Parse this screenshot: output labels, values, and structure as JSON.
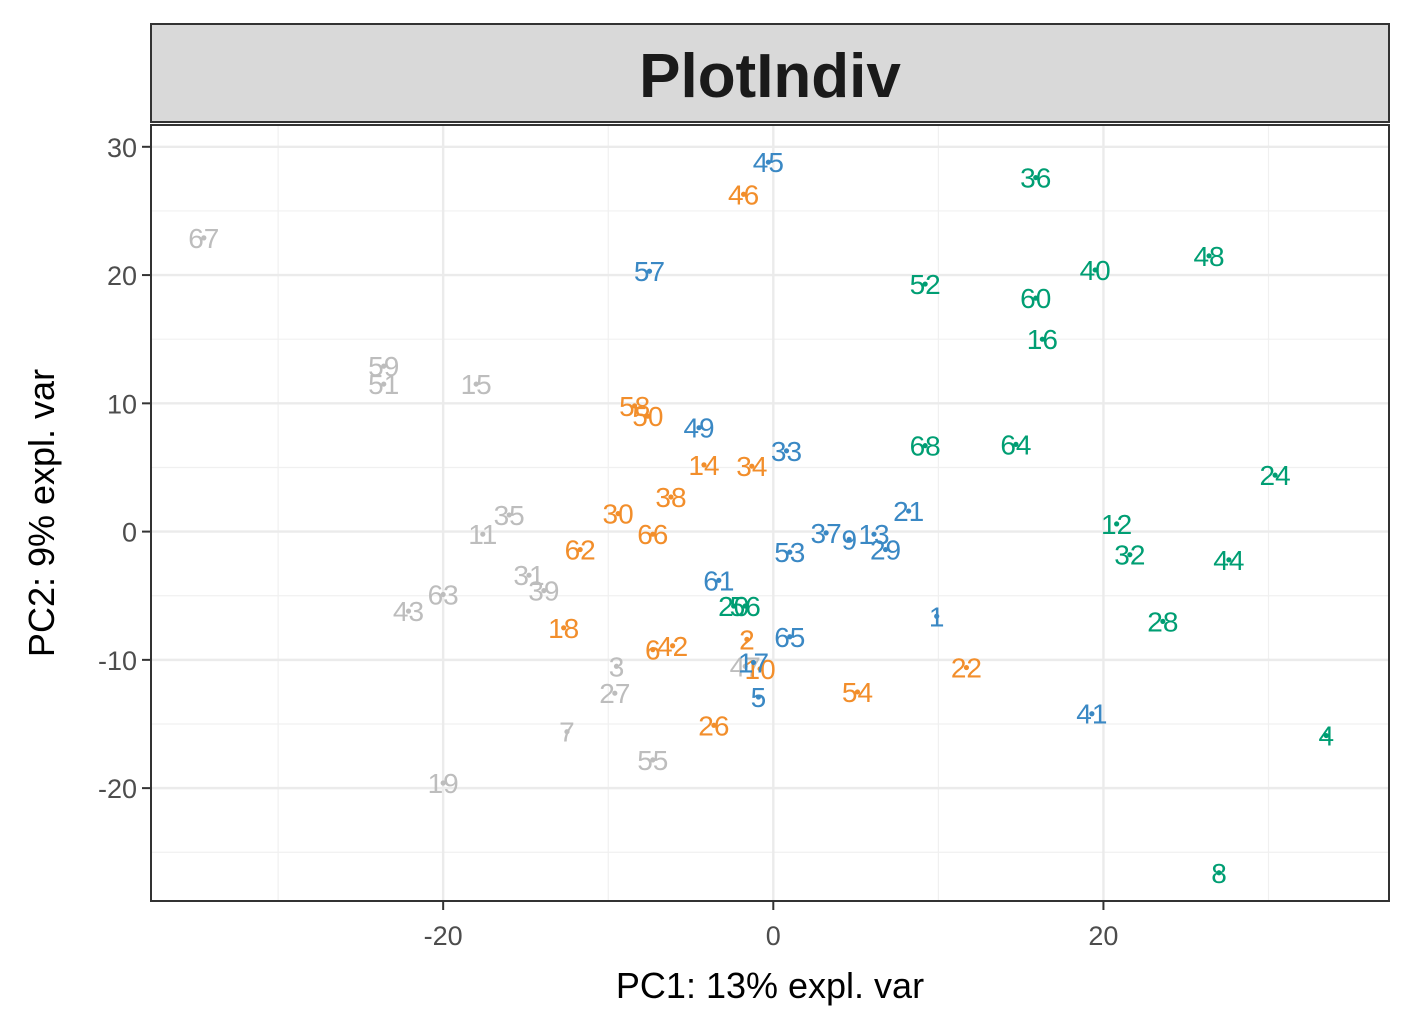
{
  "chart_data": {
    "type": "scatter",
    "title": "PlotIndiv",
    "xlabel": "PC1: 13% expl. var",
    "ylabel": "PC2: 9% expl. var",
    "xlim": [
      -37.7,
      37.3
    ],
    "ylim": [
      -28.8,
      31.7
    ],
    "x_ticks": [
      -20,
      0,
      20
    ],
    "x_tick_labels": [
      "-20",
      "0",
      "20"
    ],
    "y_ticks": [
      -20,
      -10,
      0,
      10,
      20,
      30
    ],
    "y_tick_labels": [
      "-20",
      "-10",
      "0",
      "10",
      "20",
      "30"
    ],
    "grid": true,
    "legend": "none",
    "colors": {
      "gray": "#bdbdbd",
      "orange": "#f28e2b",
      "blue": "#3a88c4",
      "green": "#009e73"
    },
    "points": [
      {
        "label": "67",
        "x": -34.5,
        "y": 22.9,
        "group": "gray"
      },
      {
        "label": "59",
        "x": -23.6,
        "y": 12.9,
        "group": "gray"
      },
      {
        "label": "51",
        "x": -23.6,
        "y": 11.5,
        "group": "gray"
      },
      {
        "label": "15",
        "x": -18.0,
        "y": 11.5,
        "group": "gray"
      },
      {
        "label": "35",
        "x": -16.0,
        "y": 1.3,
        "group": "gray"
      },
      {
        "label": "11",
        "x": -17.6,
        "y": -0.2,
        "group": "gray"
      },
      {
        "label": "31",
        "x": -14.8,
        "y": -3.4,
        "group": "gray"
      },
      {
        "label": "39",
        "x": -13.9,
        "y": -4.6,
        "group": "gray"
      },
      {
        "label": "63",
        "x": -20.0,
        "y": -4.9,
        "group": "gray"
      },
      {
        "label": "43",
        "x": -22.1,
        "y": -6.2,
        "group": "gray"
      },
      {
        "label": "3",
        "x": -9.5,
        "y": -10.5,
        "group": "gray"
      },
      {
        "label": "27",
        "x": -9.6,
        "y": -12.6,
        "group": "gray"
      },
      {
        "label": "7",
        "x": -12.5,
        "y": -15.6,
        "group": "gray"
      },
      {
        "label": "55",
        "x": -7.3,
        "y": -17.8,
        "group": "gray"
      },
      {
        "label": "19",
        "x": -20.0,
        "y": -19.6,
        "group": "gray"
      },
      {
        "label": "47",
        "x": -1.7,
        "y": -10.5,
        "group": "gray"
      },
      {
        "label": "46",
        "x": -1.8,
        "y": 26.3,
        "group": "orange"
      },
      {
        "label": "58",
        "x": -8.4,
        "y": 9.8,
        "group": "orange"
      },
      {
        "label": "50",
        "x": -7.6,
        "y": 9.0,
        "group": "orange"
      },
      {
        "label": "14",
        "x": -4.2,
        "y": 5.2,
        "group": "orange"
      },
      {
        "label": "34",
        "x": -1.3,
        "y": 5.1,
        "group": "orange"
      },
      {
        "label": "38",
        "x": -6.2,
        "y": 2.7,
        "group": "orange"
      },
      {
        "label": "30",
        "x": -9.4,
        "y": 1.4,
        "group": "orange"
      },
      {
        "label": "66",
        "x": -7.3,
        "y": -0.2,
        "group": "orange"
      },
      {
        "label": "62",
        "x": -11.7,
        "y": -1.4,
        "group": "orange"
      },
      {
        "label": "18",
        "x": -12.7,
        "y": -7.5,
        "group": "orange"
      },
      {
        "label": "6",
        "x": -7.3,
        "y": -9.2,
        "group": "orange"
      },
      {
        "label": "42",
        "x": -6.1,
        "y": -8.9,
        "group": "orange"
      },
      {
        "label": "2",
        "x": -1.6,
        "y": -8.4,
        "group": "orange"
      },
      {
        "label": "10",
        "x": -0.8,
        "y": -10.7,
        "group": "orange"
      },
      {
        "label": "26",
        "x": -3.6,
        "y": -15.1,
        "group": "orange"
      },
      {
        "label": "54",
        "x": 5.1,
        "y": -12.5,
        "group": "orange"
      },
      {
        "label": "22",
        "x": 11.7,
        "y": -10.6,
        "group": "orange"
      },
      {
        "label": "45",
        "x": -0.3,
        "y": 28.8,
        "group": "blue"
      },
      {
        "label": "57",
        "x": -7.5,
        "y": 20.3,
        "group": "blue"
      },
      {
        "label": "49",
        "x": -4.5,
        "y": 8.1,
        "group": "blue"
      },
      {
        "label": "33",
        "x": 0.8,
        "y": 6.3,
        "group": "blue"
      },
      {
        "label": "21",
        "x": 8.2,
        "y": 1.6,
        "group": "blue"
      },
      {
        "label": "37",
        "x": 3.2,
        "y": -0.1,
        "group": "blue"
      },
      {
        "label": "9",
        "x": 4.6,
        "y": -0.6,
        "group": "blue"
      },
      {
        "label": "13",
        "x": 6.1,
        "y": -0.2,
        "group": "blue"
      },
      {
        "label": "29",
        "x": 6.8,
        "y": -1.4,
        "group": "blue"
      },
      {
        "label": "53",
        "x": 1.0,
        "y": -1.6,
        "group": "blue"
      },
      {
        "label": "61",
        "x": -3.3,
        "y": -3.8,
        "group": "blue"
      },
      {
        "label": "65",
        "x": 1.0,
        "y": -8.2,
        "group": "blue"
      },
      {
        "label": "1",
        "x": 9.9,
        "y": -6.6,
        "group": "blue"
      },
      {
        "label": "17",
        "x": -1.2,
        "y": -10.2,
        "group": "blue"
      },
      {
        "label": "5",
        "x": -0.9,
        "y": -12.9,
        "group": "blue"
      },
      {
        "label": "41",
        "x": 19.3,
        "y": -14.2,
        "group": "blue"
      },
      {
        "label": "36",
        "x": 15.9,
        "y": 27.6,
        "group": "green"
      },
      {
        "label": "48",
        "x": 26.4,
        "y": 21.5,
        "group": "green"
      },
      {
        "label": "40",
        "x": 19.5,
        "y": 20.4,
        "group": "green"
      },
      {
        "label": "52",
        "x": 9.2,
        "y": 19.3,
        "group": "green"
      },
      {
        "label": "60",
        "x": 15.9,
        "y": 18.2,
        "group": "green"
      },
      {
        "label": "16",
        "x": 16.3,
        "y": 15.0,
        "group": "green"
      },
      {
        "label": "68",
        "x": 9.2,
        "y": 6.7,
        "group": "green"
      },
      {
        "label": "64",
        "x": 14.7,
        "y": 6.8,
        "group": "green"
      },
      {
        "label": "24",
        "x": 30.4,
        "y": 4.4,
        "group": "green"
      },
      {
        "label": "12",
        "x": 20.8,
        "y": 0.6,
        "group": "green"
      },
      {
        "label": "32",
        "x": 21.6,
        "y": -1.8,
        "group": "green"
      },
      {
        "label": "44",
        "x": 27.6,
        "y": -2.2,
        "group": "green"
      },
      {
        "label": "28",
        "x": 23.6,
        "y": -7.0,
        "group": "green"
      },
      {
        "label": "20",
        "x": -2.4,
        "y": -5.8,
        "group": "green"
      },
      {
        "label": "56",
        "x": -1.7,
        "y": -5.8,
        "group": "green"
      },
      {
        "label": "4",
        "x": 33.5,
        "y": -15.9,
        "group": "green"
      },
      {
        "label": "8",
        "x": 27.0,
        "y": -26.6,
        "group": "green"
      }
    ]
  }
}
